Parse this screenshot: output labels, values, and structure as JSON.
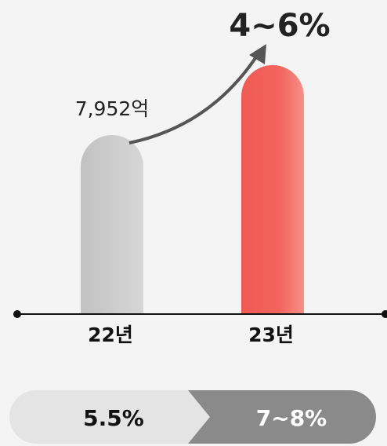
{
  "chart_data": {
    "type": "bar",
    "annotation": "4~6%",
    "categories": [
      "22년",
      "23년"
    ],
    "values": [
      7952,
      11060
    ],
    "value_labels": [
      "7,952억",
      null
    ],
    "colors": [
      "#c6c6c6",
      "#f2625c"
    ],
    "comparison": [
      "5.5%",
      "7~8%"
    ]
  }
}
